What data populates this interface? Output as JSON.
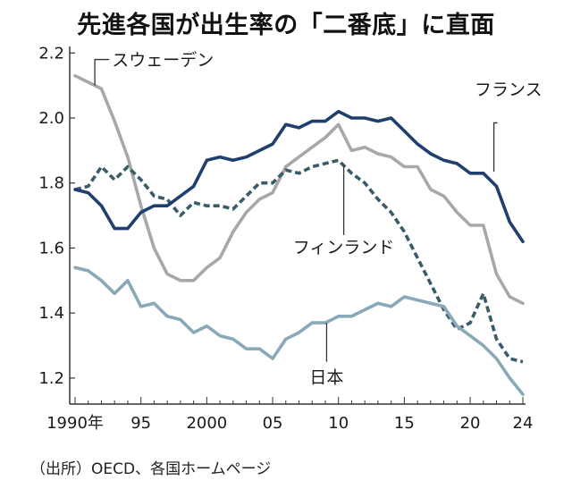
{
  "title": "先進各国が出生率の「二番底」に直面",
  "source": "（出所）OECD、各国ホームページ",
  "colors": {
    "france": "#1f3f6e",
    "sweden": "#a8a8a8",
    "finland": "#3a5c68",
    "japan": "#89a9b8",
    "axis": "#333333"
  },
  "chart_data": {
    "type": "line",
    "x": [
      1990,
      1991,
      1992,
      1993,
      1994,
      1995,
      1996,
      1997,
      1998,
      1999,
      2000,
      2001,
      2002,
      2003,
      2004,
      2005,
      2006,
      2007,
      2008,
      2009,
      2010,
      2011,
      2012,
      2013,
      2014,
      2015,
      2016,
      2017,
      2018,
      2019,
      2020,
      2021,
      2022,
      2023,
      2024
    ],
    "xlim": [
      1990,
      2024
    ],
    "ylim": [
      1.12,
      2.22
    ],
    "yticks": [
      1.2,
      1.4,
      1.6,
      1.8,
      2.0,
      2.2
    ],
    "ytick_labels": [
      "1.2",
      "1.4",
      "1.6",
      "1.8",
      "2.0",
      "2.2"
    ],
    "xticks": [
      1990,
      1995,
      2000,
      2005,
      2010,
      2015,
      2020,
      2024
    ],
    "xtick_labels": [
      "1990年",
      "95",
      "2000",
      "05",
      "10",
      "15",
      "20",
      "24"
    ],
    "grid": false,
    "series": [
      {
        "name": "スウェーデン",
        "style": "solid",
        "color": "#a8a8a8",
        "values": [
          2.13,
          2.11,
          2.09,
          1.99,
          1.88,
          1.73,
          1.6,
          1.52,
          1.5,
          1.5,
          1.54,
          1.57,
          1.65,
          1.71,
          1.75,
          1.77,
          1.85,
          1.88,
          1.91,
          1.94,
          1.98,
          1.9,
          1.91,
          1.89,
          1.88,
          1.85,
          1.85,
          1.78,
          1.76,
          1.71,
          1.67,
          1.67,
          1.52,
          1.45,
          1.43
        ]
      },
      {
        "name": "フランス",
        "style": "solid",
        "color": "#1f3f6e",
        "values": [
          1.78,
          1.77,
          1.73,
          1.66,
          1.66,
          1.71,
          1.73,
          1.73,
          1.76,
          1.79,
          1.87,
          1.88,
          1.87,
          1.88,
          1.9,
          1.92,
          1.98,
          1.97,
          1.99,
          1.99,
          2.02,
          2.0,
          2.0,
          1.99,
          2.0,
          1.96,
          1.92,
          1.89,
          1.87,
          1.86,
          1.83,
          1.83,
          1.79,
          1.68,
          1.62
        ]
      },
      {
        "name": "フィンランド",
        "style": "dashed",
        "color": "#3a5c68",
        "values": [
          1.78,
          1.79,
          1.85,
          1.81,
          1.85,
          1.81,
          1.76,
          1.75,
          1.7,
          1.74,
          1.73,
          1.73,
          1.72,
          1.76,
          1.8,
          1.8,
          1.84,
          1.83,
          1.85,
          1.86,
          1.87,
          1.83,
          1.8,
          1.75,
          1.71,
          1.65,
          1.57,
          1.49,
          1.41,
          1.35,
          1.37,
          1.46,
          1.32,
          1.26,
          1.25
        ]
      },
      {
        "name": "日本",
        "style": "solid",
        "color": "#89a9b8",
        "values": [
          1.54,
          1.53,
          1.5,
          1.46,
          1.5,
          1.42,
          1.43,
          1.39,
          1.38,
          1.34,
          1.36,
          1.33,
          1.32,
          1.29,
          1.29,
          1.26,
          1.32,
          1.34,
          1.37,
          1.37,
          1.39,
          1.39,
          1.41,
          1.43,
          1.42,
          1.45,
          1.44,
          1.43,
          1.42,
          1.36,
          1.33,
          1.3,
          1.26,
          1.2,
          1.15
        ]
      }
    ]
  }
}
